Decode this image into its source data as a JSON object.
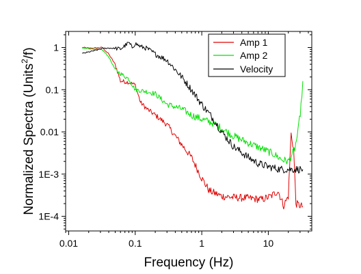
{
  "chart_data": {
    "type": "line",
    "title": "",
    "xlabel": "Frequency (Hz)",
    "ylabel_parts": {
      "before": "Normalized Spectra (Units",
      "sup": "2",
      "after": "/f)"
    },
    "x_scale": "log",
    "y_scale": "log",
    "xlim": [
      0.009,
      45
    ],
    "ylim": [
      4.5e-05,
      2.4
    ],
    "x_ticks": [
      {
        "value": 0.01,
        "label": "0.01"
      },
      {
        "value": 0.1,
        "label": "0.1"
      },
      {
        "value": 1,
        "label": "1"
      },
      {
        "value": 10,
        "label": "10"
      }
    ],
    "y_ticks": [
      {
        "value": 1,
        "label": "1"
      },
      {
        "value": 0.1,
        "label": "0.1"
      },
      {
        "value": 0.01,
        "label": "0.01"
      },
      {
        "value": 0.001,
        "label": "1E-3"
      },
      {
        "value": 0.0001,
        "label": "1E-4"
      }
    ],
    "grid": false,
    "legend_position": "top-right",
    "series": [
      {
        "name": "Amp 1",
        "color": "#e00000",
        "points": [
          [
            0.016,
            1.0
          ],
          [
            0.02,
            0.96
          ],
          [
            0.025,
            0.97
          ],
          [
            0.032,
            1.0
          ],
          [
            0.04,
            0.7
          ],
          [
            0.05,
            0.4
          ],
          [
            0.06,
            0.16
          ],
          [
            0.08,
            0.15
          ],
          [
            0.1,
            0.13
          ],
          [
            0.12,
            0.05
          ],
          [
            0.15,
            0.035
          ],
          [
            0.2,
            0.025
          ],
          [
            0.3,
            0.015
          ],
          [
            0.4,
            0.008
          ],
          [
            0.5,
            0.005
          ],
          [
            0.7,
            0.0025
          ],
          [
            1.0,
            0.0008
          ],
          [
            1.3,
            0.0004
          ],
          [
            2.0,
            0.0003
          ],
          [
            3.0,
            0.00028
          ],
          [
            5.0,
            0.00027
          ],
          [
            8.0,
            0.00025
          ],
          [
            11.0,
            0.0003
          ],
          [
            14.0,
            0.0004
          ],
          [
            17.0,
            0.00018
          ],
          [
            20.0,
            0.0003
          ],
          [
            22.0,
            0.009
          ],
          [
            24.0,
            0.004
          ],
          [
            26.0,
            0.0002
          ],
          [
            30.0,
            0.00018
          ],
          [
            33.0,
            0.00017
          ]
        ]
      },
      {
        "name": "Amp 2",
        "color": "#00e000",
        "points": [
          [
            0.016,
            0.95
          ],
          [
            0.02,
            0.95
          ],
          [
            0.025,
            0.9
          ],
          [
            0.032,
            0.88
          ],
          [
            0.04,
            0.6
          ],
          [
            0.05,
            0.3
          ],
          [
            0.06,
            0.24
          ],
          [
            0.08,
            0.18
          ],
          [
            0.1,
            0.1
          ],
          [
            0.15,
            0.09
          ],
          [
            0.2,
            0.08
          ],
          [
            0.3,
            0.045
          ],
          [
            0.5,
            0.035
          ],
          [
            0.7,
            0.025
          ],
          [
            1.0,
            0.02
          ],
          [
            1.5,
            0.016
          ],
          [
            2.0,
            0.012
          ],
          [
            3.0,
            0.008
          ],
          [
            5.0,
            0.0055
          ],
          [
            8.0,
            0.004
          ],
          [
            12.0,
            0.003
          ],
          [
            16.0,
            0.0022
          ],
          [
            20.0,
            0.002
          ],
          [
            25.0,
            0.004
          ],
          [
            28.0,
            0.01
          ],
          [
            31.0,
            0.04
          ],
          [
            33.0,
            0.16
          ]
        ]
      },
      {
        "name": "Velocity",
        "color": "#000000",
        "points": [
          [
            0.016,
            0.72
          ],
          [
            0.02,
            0.78
          ],
          [
            0.025,
            0.85
          ],
          [
            0.032,
            0.95
          ],
          [
            0.04,
            0.97
          ],
          [
            0.05,
            0.95
          ],
          [
            0.06,
            0.92
          ],
          [
            0.07,
            1.1
          ],
          [
            0.08,
            1.3
          ],
          [
            0.09,
            1.0
          ],
          [
            0.1,
            1.25
          ],
          [
            0.12,
            1.05
          ],
          [
            0.15,
            0.95
          ],
          [
            0.2,
            0.7
          ],
          [
            0.3,
            0.5
          ],
          [
            0.4,
            0.3
          ],
          [
            0.5,
            0.2
          ],
          [
            0.7,
            0.1
          ],
          [
            1.0,
            0.045
          ],
          [
            1.5,
            0.02
          ],
          [
            2.0,
            0.01
          ],
          [
            3.0,
            0.0045
          ],
          [
            5.0,
            0.0025
          ],
          [
            7.0,
            0.0018
          ],
          [
            10.0,
            0.0015
          ],
          [
            15.0,
            0.0013
          ],
          [
            20.0,
            0.0013
          ],
          [
            25.0,
            0.0013
          ],
          [
            30.0,
            0.0013
          ],
          [
            33.0,
            0.0013
          ]
        ]
      }
    ]
  }
}
